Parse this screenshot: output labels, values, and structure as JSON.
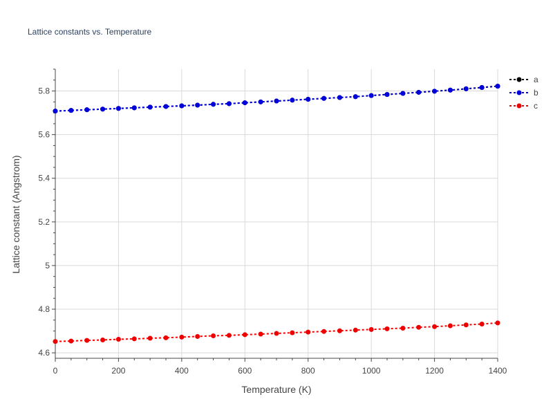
{
  "chart_data": {
    "type": "line",
    "title": "Lattice constants vs. Temperature",
    "xlabel": "Temperature (K)",
    "ylabel": "Lattice constant (Angstrom)",
    "xlim": [
      0,
      1400
    ],
    "ylim": [
      4.575,
      5.9
    ],
    "xticks": [
      0,
      200,
      400,
      600,
      800,
      1000,
      1200,
      1400
    ],
    "xtick_labels": [
      "0",
      "200",
      "400",
      "600",
      "800",
      "1000",
      "1200",
      "1400"
    ],
    "yticks": [
      4.6,
      4.8,
      5,
      5.2,
      5.4,
      5.6,
      5.8
    ],
    "ytick_labels": [
      "4.6",
      "4.8",
      "5",
      "5.2",
      "5.4",
      "5.6",
      "5.8"
    ],
    "grid": true,
    "legend_position": "top-right",
    "x": [
      0,
      50,
      100,
      150,
      200,
      250,
      300,
      350,
      400,
      450,
      500,
      550,
      600,
      650,
      700,
      750,
      800,
      850,
      900,
      950,
      1000,
      1050,
      1100,
      1150,
      1200,
      1250,
      1300,
      1350,
      1400
    ],
    "series": [
      {
        "name": "a",
        "color": "#000000",
        "values": [
          5.708,
          5.711,
          5.714,
          5.717,
          5.72,
          5.723,
          5.726,
          5.729,
          5.732,
          5.735,
          5.739,
          5.742,
          5.746,
          5.75,
          5.754,
          5.758,
          5.762,
          5.766,
          5.77,
          5.774,
          5.779,
          5.784,
          5.789,
          5.794,
          5.799,
          5.804,
          5.81,
          5.816,
          5.822
        ]
      },
      {
        "name": "b",
        "color": "#0000dd",
        "values": [
          5.708,
          5.711,
          5.714,
          5.717,
          5.72,
          5.723,
          5.726,
          5.729,
          5.732,
          5.735,
          5.739,
          5.742,
          5.746,
          5.75,
          5.754,
          5.758,
          5.762,
          5.766,
          5.77,
          5.774,
          5.779,
          5.784,
          5.789,
          5.794,
          5.799,
          5.804,
          5.81,
          5.816,
          5.822
        ]
      },
      {
        "name": "c",
        "color": "#ee0000",
        "values": [
          4.652,
          4.654,
          4.657,
          4.659,
          4.662,
          4.664,
          4.667,
          4.669,
          4.672,
          4.675,
          4.678,
          4.68,
          4.683,
          4.686,
          4.689,
          4.692,
          4.695,
          4.698,
          4.701,
          4.704,
          4.707,
          4.71,
          4.713,
          4.717,
          4.72,
          4.724,
          4.728,
          4.732,
          4.737
        ]
      }
    ]
  }
}
